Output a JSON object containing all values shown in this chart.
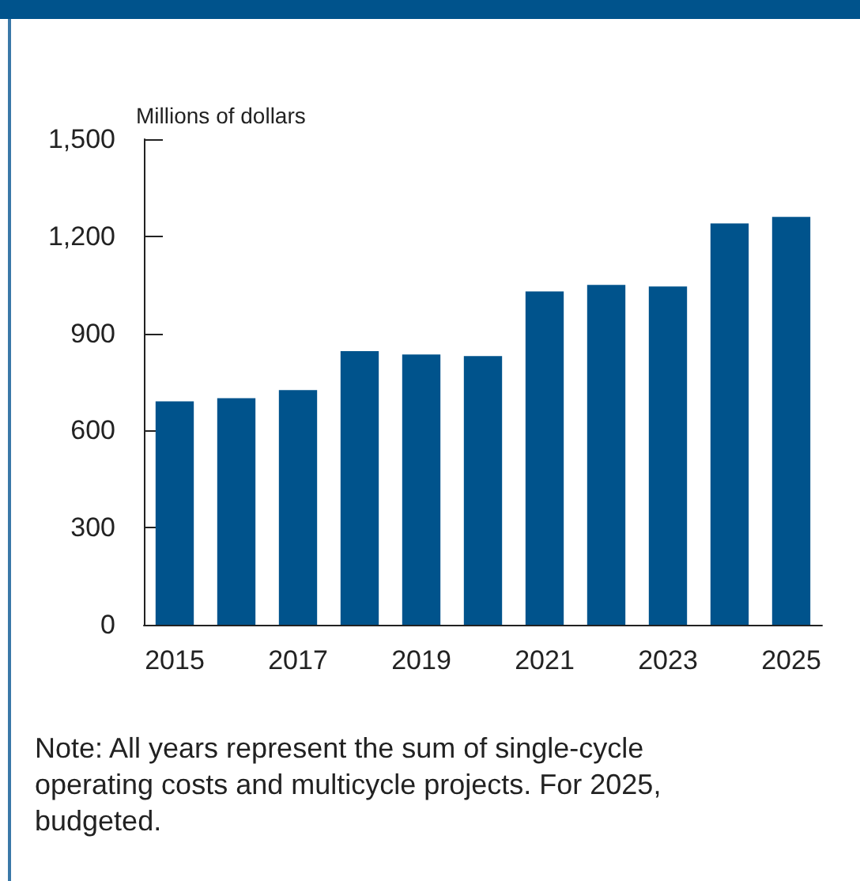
{
  "chart_data": {
    "type": "bar",
    "ylabel": "Millions of dollars",
    "categories": [
      "2015",
      null,
      "2017",
      null,
      "2019",
      null,
      "2021",
      null,
      "2023",
      null,
      "2025"
    ],
    "values": [
      690,
      700,
      725,
      845,
      835,
      830,
      1030,
      1050,
      1045,
      1240,
      1260
    ],
    "color": "#00538c",
    "ylim": [
      0,
      1500
    ],
    "yticks": [
      0,
      {
        "value": 300,
        "label": "300"
      },
      {
        "value": 600,
        "label": "600"
      },
      {
        "value": 900,
        "label": "900"
      },
      {
        "value": 1200,
        "label": "1,200"
      },
      {
        "value": 1500,
        "label": "1,500"
      }
    ],
    "grid": false,
    "annotations": [
      "Note: All years represent the sum of single-cycle operating costs and multicycle projects. For 2025, budgeted."
    ]
  }
}
